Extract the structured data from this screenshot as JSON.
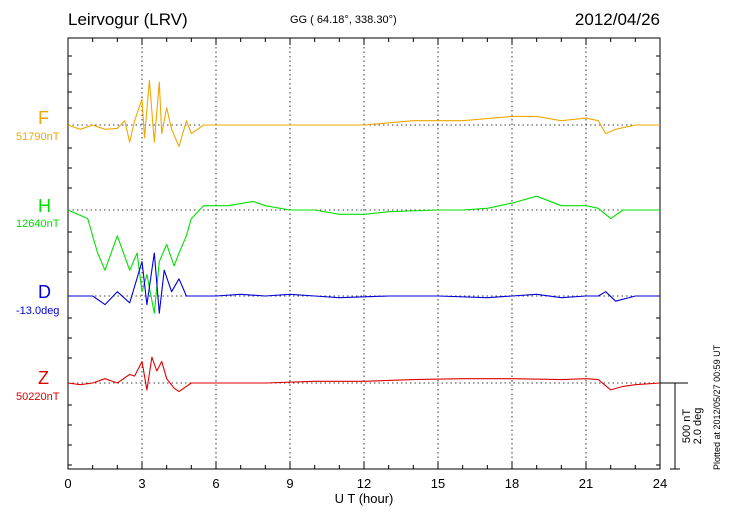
{
  "header": {
    "station": "Leirvogur (LRV)",
    "coords": "GG ( 64.18°, 338.30°)",
    "date": "2012/04/26"
  },
  "footer": {
    "plotted": "Plotted at 2012/05/27 00:59 UT"
  },
  "chart_data": {
    "type": "line",
    "xlabel": "U T (hour)",
    "xlim": [
      0,
      24
    ],
    "xticks": [
      "0",
      "3",
      "6",
      "9",
      "12",
      "15",
      "18",
      "21",
      "24"
    ],
    "scale_label_1": "500 nT",
    "scale_label_2": "2.0 deg",
    "colors": {
      "F": "#f0a800",
      "H": "#00e000",
      "D": "#0000d8",
      "Z": "#e00000"
    },
    "series": [
      {
        "name": "F",
        "baseline": "51790nT",
        "points": [
          [
            0,
            0
          ],
          [
            0.5,
            -25
          ],
          [
            1.0,
            0
          ],
          [
            1.5,
            -25
          ],
          [
            2.0,
            -20
          ],
          [
            2.3,
            25
          ],
          [
            2.5,
            -100
          ],
          [
            2.7,
            25
          ],
          [
            3.0,
            150
          ],
          [
            3.1,
            -75
          ],
          [
            3.3,
            260
          ],
          [
            3.5,
            -100
          ],
          [
            3.7,
            250
          ],
          [
            3.8,
            -50
          ],
          [
            4.0,
            100
          ],
          [
            4.2,
            -25
          ],
          [
            4.5,
            -125
          ],
          [
            4.8,
            25
          ],
          [
            5.0,
            -50
          ],
          [
            5.5,
            0
          ],
          [
            6.0,
            0
          ],
          [
            8.0,
            0
          ],
          [
            9.0,
            0
          ],
          [
            10.0,
            0
          ],
          [
            11.0,
            0
          ],
          [
            12.0,
            0
          ],
          [
            14.0,
            25
          ],
          [
            16.0,
            25
          ],
          [
            18.0,
            50
          ],
          [
            19.0,
            50
          ],
          [
            20.0,
            25
          ],
          [
            21.0,
            40
          ],
          [
            21.5,
            25
          ],
          [
            21.8,
            -50
          ],
          [
            22.2,
            -25
          ],
          [
            23.0,
            0
          ],
          [
            24.0,
            0
          ]
        ]
      },
      {
        "name": "H",
        "baseline": "12640nT",
        "points": [
          [
            0,
            0
          ],
          [
            0.8,
            -50
          ],
          [
            1.2,
            -250
          ],
          [
            1.5,
            -350
          ],
          [
            2.0,
            -150
          ],
          [
            2.5,
            -350
          ],
          [
            2.8,
            -250
          ],
          [
            3.0,
            -475
          ],
          [
            3.2,
            -375
          ],
          [
            3.5,
            -600
          ],
          [
            3.7,
            -300
          ],
          [
            4.0,
            -200
          ],
          [
            4.3,
            -325
          ],
          [
            4.5,
            -250
          ],
          [
            4.8,
            -150
          ],
          [
            5.0,
            -50
          ],
          [
            5.5,
            25
          ],
          [
            6.5,
            25
          ],
          [
            7.5,
            50
          ],
          [
            8.0,
            25
          ],
          [
            9.0,
            0
          ],
          [
            10.0,
            0
          ],
          [
            11.0,
            -25
          ],
          [
            12.0,
            -25
          ],
          [
            13.0,
            -10
          ],
          [
            15.0,
            0
          ],
          [
            16.0,
            0
          ],
          [
            17.0,
            10
          ],
          [
            18.0,
            40
          ],
          [
            19.0,
            80
          ],
          [
            20.0,
            25
          ],
          [
            21.0,
            25
          ],
          [
            21.5,
            10
          ],
          [
            22.0,
            -50
          ],
          [
            22.5,
            0
          ],
          [
            23.0,
            0
          ],
          [
            24.0,
            0
          ]
        ]
      },
      {
        "name": "D",
        "baseline": "-13.0deg",
        "points": [
          [
            0,
            0
          ],
          [
            1.0,
            0
          ],
          [
            1.5,
            -50
          ],
          [
            2.0,
            25
          ],
          [
            2.5,
            -40
          ],
          [
            3.0,
            200
          ],
          [
            3.2,
            -50
          ],
          [
            3.5,
            250
          ],
          [
            3.7,
            -100
          ],
          [
            3.9,
            150
          ],
          [
            4.2,
            25
          ],
          [
            4.5,
            100
          ],
          [
            4.8,
            0
          ],
          [
            5.0,
            0
          ],
          [
            6.0,
            0
          ],
          [
            7.0,
            10
          ],
          [
            8.0,
            0
          ],
          [
            9.0,
            10
          ],
          [
            10.0,
            0
          ],
          [
            11.0,
            -10
          ],
          [
            13.0,
            0
          ],
          [
            15.0,
            0
          ],
          [
            17.0,
            -10
          ],
          [
            18.0,
            0
          ],
          [
            19.0,
            10
          ],
          [
            20.0,
            -10
          ],
          [
            21.0,
            0
          ],
          [
            21.5,
            0
          ],
          [
            21.8,
            25
          ],
          [
            22.2,
            -30
          ],
          [
            23.0,
            0
          ],
          [
            24.0,
            0
          ]
        ]
      },
      {
        "name": "Z",
        "baseline": "50220nT",
        "points": [
          [
            0,
            0
          ],
          [
            0.5,
            -10
          ],
          [
            1.0,
            0
          ],
          [
            1.5,
            25
          ],
          [
            2.0,
            0
          ],
          [
            2.5,
            50
          ],
          [
            2.7,
            40
          ],
          [
            3.0,
            125
          ],
          [
            3.2,
            -40
          ],
          [
            3.4,
            150
          ],
          [
            3.6,
            70
          ],
          [
            3.8,
            125
          ],
          [
            4.0,
            25
          ],
          [
            4.3,
            -30
          ],
          [
            4.5,
            -50
          ],
          [
            5.0,
            0
          ],
          [
            6.0,
            0
          ],
          [
            8.0,
            0
          ],
          [
            10.0,
            10
          ],
          [
            12.0,
            10
          ],
          [
            14.0,
            20
          ],
          [
            16.0,
            25
          ],
          [
            18.0,
            25
          ],
          [
            20.0,
            20
          ],
          [
            21.0,
            25
          ],
          [
            21.5,
            20
          ],
          [
            22.0,
            -40
          ],
          [
            22.5,
            -20
          ],
          [
            23.0,
            -10
          ],
          [
            24.0,
            0
          ]
        ]
      }
    ]
  }
}
